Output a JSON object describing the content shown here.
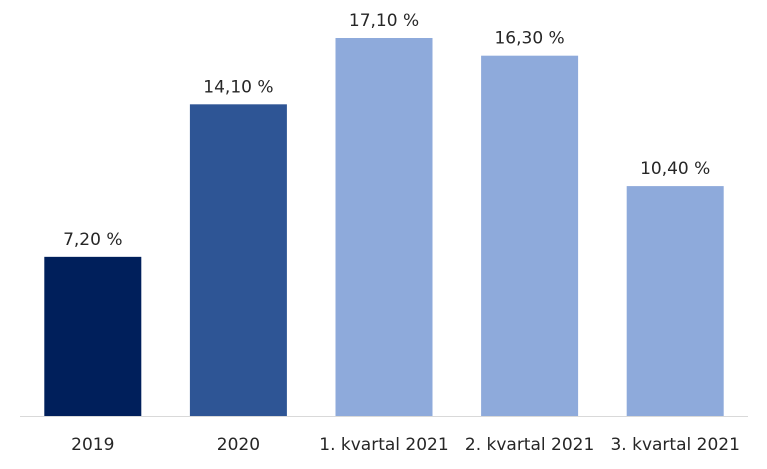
{
  "chart_data": {
    "type": "bar",
    "categories": [
      "2019",
      "2020",
      "1. kvartal 2021",
      "2. kvartal 2021",
      "3. kvartal 2021"
    ],
    "values": [
      7.2,
      14.1,
      17.1,
      16.3,
      10.4
    ],
    "value_labels": [
      "7,20 %",
      "14,10 %",
      "17,10 %",
      "16,30 %",
      "10,40 %"
    ],
    "colors": [
      "#001f5b",
      "#2e5595",
      "#8eaadb",
      "#8eaadb",
      "#8eaadb"
    ],
    "title": "",
    "xlabel": "",
    "ylabel": "",
    "ylim": [
      0,
      17.1
    ],
    "grid": false,
    "legend": "none"
  }
}
